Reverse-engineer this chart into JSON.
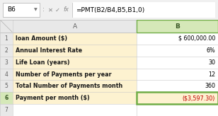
{
  "formula_bar_cell": "B6",
  "formula_bar_formula": "=PMT(B2/B4,B5,B1,0)",
  "col_a_header": "A",
  "col_b_header": "B",
  "rows": [
    {
      "num": "1",
      "label": "loan Amount ($)",
      "value": "$ 600,000.00",
      "highlight_b": false
    },
    {
      "num": "2",
      "label": "Annual Interest Rate",
      "value": "6%",
      "highlight_b": false
    },
    {
      "num": "3",
      "label": "Life Loan (years)",
      "value": "30",
      "highlight_b": false
    },
    {
      "num": "4",
      "label": "Number of Payments per year",
      "value": "12",
      "highlight_b": false
    },
    {
      "num": "5",
      "label": "Total Number of Payments month",
      "value": "360",
      "highlight_b": false
    },
    {
      "num": "6",
      "label": "Payment per month ($)",
      "value": "($3,597.30)",
      "highlight_b": true
    }
  ],
  "header_bg": "#e8e8e8",
  "row_bg_yellow": "#fdf2d0",
  "row_bg_white": "#ffffff",
  "selected_cell_border": "#70ad47",
  "value_color_normal": "#000000",
  "value_color_red": "#c00000",
  "grid_color": "#c8c8c8",
  "header_text_color": "#606060",
  "row_num_color": "#606060",
  "top_bar_bg": "#f0f0f0",
  "formula_bg": "#ffffff",
  "col_b_hdr_bg": "#d5e8b8",
  "col_b_hdr_text": "#375623",
  "row6_hdr_bg": "#d5e8b8",
  "row6_hdr_text": "#375623",
  "diagonal_color": "#b0b0b0"
}
